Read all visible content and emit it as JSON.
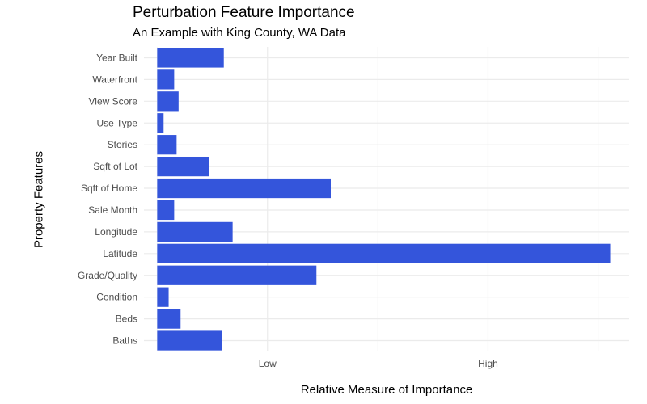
{
  "chart_data": {
    "type": "bar",
    "orientation": "horizontal",
    "title": "Perturbation Feature Importance",
    "subtitle": "An Example with King County, WA Data",
    "xlabel": "Relative Measure of Importance",
    "ylabel": "Property Features",
    "categories": [
      "Baths",
      "Beds",
      "Condition",
      "Grade/Quality",
      "Latitude",
      "Longitude",
      "Sale Month",
      "Sqft of Home",
      "Sqft of Lot",
      "Stories",
      "Use Type",
      "View Score",
      "Waterfront",
      "Year Built"
    ],
    "values": [
      0.295,
      0.106,
      0.052,
      0.722,
      2.054,
      0.342,
      0.077,
      0.787,
      0.234,
      0.088,
      0.029,
      0.097,
      0.077,
      0.302
    ],
    "x_ticks": [
      {
        "value": 0.5,
        "label": "Low"
      },
      {
        "value": 1.5,
        "label": "High"
      }
    ],
    "xlim": [
      -0.06,
      2.14
    ],
    "bar_color": "#3455db",
    "grid": true
  }
}
